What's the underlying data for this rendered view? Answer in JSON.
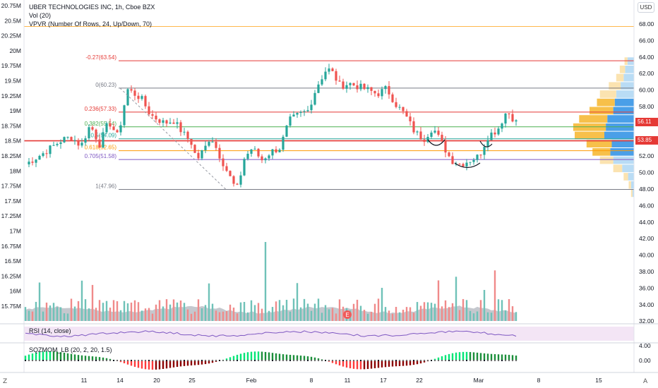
{
  "header": {
    "symbol_line": "UBER TECHNOLOGIES INC, 1h, Cboe BZX",
    "volume_indicator": "Vol (20)",
    "vpvr_indicator": "VPVR (Number Of Rows, 24, Up/Down, 70)"
  },
  "currency_button": "USD",
  "price_tags": {
    "current": "56.11",
    "level": "53.85",
    "current_color": "#e53935",
    "level_color": "#e53935"
  },
  "rsi_label": "RSI (14, close)",
  "sqz_label": "SQZMOM_LB (20, 2, 20, 1.5)",
  "corner_left": "Z",
  "corner_right": "A",
  "event_marker": "E",
  "chart_data": {
    "type": "candlestick",
    "left_axis_ticks": [
      "20.75M",
      "20.5M",
      "20.25M",
      "20M",
      "19.75M",
      "19.5M",
      "19.25M",
      "19M",
      "18.75M",
      "18.5M",
      "18.25M",
      "18M",
      "17.75M",
      "17.5M",
      "17.25M",
      "17M",
      "16.75M",
      "16.5M",
      "16.25M",
      "16M",
      "15.75M"
    ],
    "right_axis_ticks": [
      "68.00",
      "66.00",
      "64.00",
      "62.00",
      "60.00",
      "58.00",
      "56.00",
      "54.00",
      "52.00",
      "50.00",
      "48.00",
      "46.00",
      "44.00",
      "42.00",
      "40.00",
      "38.00",
      "36.00",
      "34.00",
      "32.00"
    ],
    "ylim": [
      32,
      69.5
    ],
    "x_ticks": [
      "11",
      "14",
      "20",
      "25",
      "Feb",
      "8",
      "11",
      "17",
      "22",
      "Mar",
      "8",
      "15"
    ],
    "sqz_ticks": [
      "4.00",
      "0.00"
    ],
    "fib_levels": [
      {
        "label": "-0.27(63.54)",
        "value": 63.54,
        "color": "#e53935"
      },
      {
        "label": "0(60.23)",
        "value": 60.23,
        "color": "#787b86"
      },
      {
        "label": "0.236(57.33)",
        "value": 57.33,
        "color": "#e53935"
      },
      {
        "label": "0.382(55.54)",
        "value": 55.54,
        "color": "#4caf50"
      },
      {
        "label": "0.5(54.09)",
        "value": 54.09,
        "color": "#26a69a"
      },
      {
        "label": "0.618(52.65)",
        "value": 52.65,
        "color": "#ff9800"
      },
      {
        "label": "0.705(51.58)",
        "value": 51.58,
        "color": "#7e57c2"
      },
      {
        "label": "1(47.96)",
        "value": 47.96,
        "color": "#787b86"
      }
    ],
    "horizontal_lines": [
      {
        "value": 67.7,
        "color": "#ffb74d"
      },
      {
        "value": 53.85,
        "color": "#e53935"
      }
    ],
    "price_path": [
      [
        0,
        51.0
      ],
      [
        4,
        52.4
      ],
      [
        8,
        54.0
      ],
      [
        10,
        54.3
      ],
      [
        12,
        53.2
      ],
      [
        14,
        55.8
      ],
      [
        16,
        53.4
      ],
      [
        18,
        56.2
      ],
      [
        20,
        54.3
      ],
      [
        22,
        60.1
      ],
      [
        25,
        59.0
      ],
      [
        27,
        57.0
      ],
      [
        30,
        56.0
      ],
      [
        32,
        56.3
      ],
      [
        34,
        54.8
      ],
      [
        36,
        53.5
      ],
      [
        37,
        51.5
      ],
      [
        39,
        53.2
      ],
      [
        40,
        54.5
      ],
      [
        42,
        52.0
      ],
      [
        45,
        48.5
      ],
      [
        46,
        48.0
      ],
      [
        47,
        51.5
      ],
      [
        49,
        53.0
      ],
      [
        51,
        51.5
      ],
      [
        53,
        52.5
      ],
      [
        55,
        53.0
      ],
      [
        57,
        56.3
      ],
      [
        59,
        57.0
      ],
      [
        61,
        57.5
      ],
      [
        63,
        60.5
      ],
      [
        65,
        62.5
      ],
      [
        66,
        62.4
      ],
      [
        68,
        60.5
      ],
      [
        70,
        60.8
      ],
      [
        72,
        60.4
      ],
      [
        74,
        60.0
      ],
      [
        76,
        59.5
      ],
      [
        78,
        60.2
      ],
      [
        80,
        58.3
      ],
      [
        82,
        57.0
      ],
      [
        84,
        55.0
      ],
      [
        86,
        54.0
      ],
      [
        88,
        55.5
      ],
      [
        90,
        53.5
      ],
      [
        92,
        51.5
      ],
      [
        94,
        51.0
      ],
      [
        96,
        51.5
      ],
      [
        98,
        52.0
      ],
      [
        100,
        54.5
      ],
      [
        102,
        55.2
      ],
      [
        104,
        57.5
      ],
      [
        106,
        56.1
      ]
    ],
    "volume_profile": [
      {
        "price": 63.5,
        "up": 10,
        "down": 22
      },
      {
        "price": 62.5,
        "up": 18,
        "down": 30
      },
      {
        "price": 61.5,
        "up": 25,
        "down": 35
      },
      {
        "price": 60.5,
        "up": 40,
        "down": 45
      },
      {
        "price": 59.5,
        "up": 55,
        "down": 60
      },
      {
        "price": 58.5,
        "up": 60,
        "down": 65
      },
      {
        "price": 57.5,
        "up": 80,
        "down": 70
      },
      {
        "price": 56.5,
        "up": 95,
        "down": 90
      },
      {
        "price": 55.5,
        "up": 110,
        "down": 95
      },
      {
        "price": 54.5,
        "up": 100,
        "down": 100
      },
      {
        "price": 53.5,
        "up": 85,
        "down": 75
      },
      {
        "price": 52.5,
        "up": 60,
        "down": 80
      },
      {
        "price": 51.5,
        "up": 45,
        "down": 70
      },
      {
        "price": 50.5,
        "up": 30,
        "down": 40
      },
      {
        "price": 49.5,
        "up": 15,
        "down": 20
      },
      {
        "price": 48.5,
        "up": 8,
        "down": 10
      },
      {
        "price": 47.5,
        "up": 5,
        "down": 5
      }
    ]
  }
}
